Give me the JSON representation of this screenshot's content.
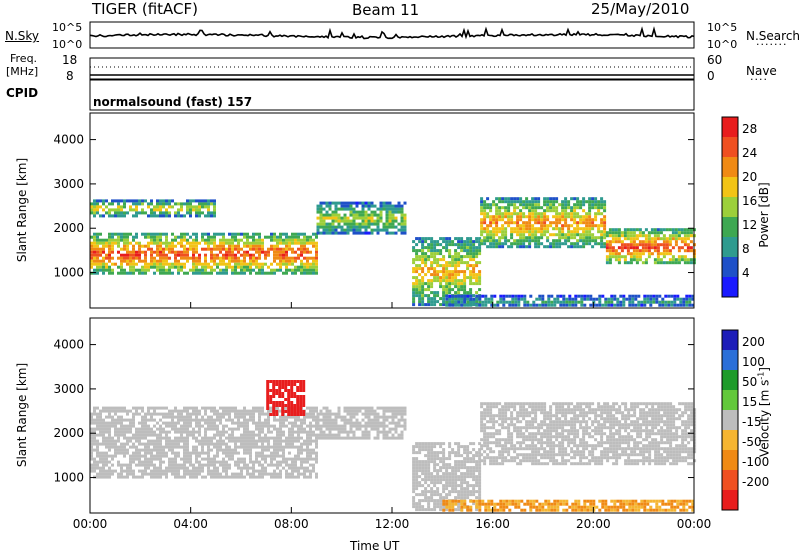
{
  "header": {
    "radar": "TIGER (fitACF)",
    "beam": "Beam 11",
    "date": "25/May/2010"
  },
  "noise_panel": {
    "left_label": "N.Sky",
    "left_ticks": [
      "10^5",
      "10^0"
    ],
    "right_ticks": [
      "10^5",
      "10^0"
    ],
    "right_label": "N.Search"
  },
  "freq_panel": {
    "left_label_line1": "Freq.",
    "left_label_line2": "[MHz]",
    "left_ticks": [
      "18",
      "8"
    ],
    "right_ticks": [
      "60",
      "0"
    ],
    "right_label": "Nave"
  },
  "cpid_panel": {
    "label": "CPID",
    "text": "normalsound (fast) 157"
  },
  "colors": {
    "power_scale": [
      "#1a1aff",
      "#1e50c8",
      "#2f9b8f",
      "#3ea852",
      "#9ccf3a",
      "#f2c416",
      "#f08a14",
      "#ef5020",
      "#e81d1d"
    ],
    "velocity_scale": [
      "#1c1cb8",
      "#2a6fd8",
      "#1e9b2a",
      "#62c83a",
      "#bdbdbd",
      "#f5b531",
      "#f08a14",
      "#ef5020",
      "#e81d1d"
    ],
    "ground_scatter": "#bdbdbd"
  },
  "chart_data": [
    {
      "type": "heatmap",
      "title": "",
      "xlabel": "Time UT",
      "ylabel": "Slant Range [km]",
      "x_ticks": [
        "00:00",
        "04:00",
        "08:00",
        "12:00",
        "16:00",
        "20:00",
        "00:00"
      ],
      "x_range_hours": [
        0,
        24
      ],
      "y_ticks": [
        1000,
        2000,
        3000,
        4000
      ],
      "y_range_km": [
        200,
        4600
      ],
      "colorbar_label": "Power [dB]",
      "colorbar_ticks": [
        4,
        8,
        12,
        16,
        20,
        24,
        28
      ],
      "colorbar_range": [
        0,
        30
      ],
      "echo_bands": [
        {
          "t_start": 0.0,
          "t_end": 9.0,
          "range_km": [
            1000,
            1900
          ],
          "power_db": 26
        },
        {
          "t_start": 0.0,
          "t_end": 5.0,
          "range_km": [
            2300,
            2650
          ],
          "power_db": 18
        },
        {
          "t_start": 9.0,
          "t_end": 12.5,
          "range_km": [
            1900,
            2600
          ],
          "power_db": 16
        },
        {
          "t_start": 12.8,
          "t_end": 15.5,
          "range_km": [
            300,
            1800
          ],
          "power_db": 20
        },
        {
          "t_start": 15.5,
          "t_end": 20.5,
          "range_km": [
            1600,
            2700
          ],
          "power_db": 22
        },
        {
          "t_start": 20.5,
          "t_end": 24.0,
          "range_km": [
            1200,
            2000
          ],
          "power_db": 26
        },
        {
          "t_start": 14.0,
          "t_end": 24.0,
          "range_km": [
            250,
            500
          ],
          "power_db": 10
        }
      ]
    },
    {
      "type": "heatmap",
      "title": "",
      "xlabel": "Time UT",
      "ylabel": "Slant Range [km]",
      "x_ticks": [
        "00:00",
        "04:00",
        "08:00",
        "12:00",
        "16:00",
        "20:00",
        "00:00"
      ],
      "x_range_hours": [
        0,
        24
      ],
      "y_ticks": [
        1000,
        2000,
        3000,
        4000
      ],
      "y_range_km": [
        200,
        4600
      ],
      "colorbar_label": "Velocity [m s",
      "colorbar_label_sup": "-1",
      "colorbar_label_end": "]",
      "colorbar_ticks": [
        200,
        100,
        50,
        15,
        -15,
        -50,
        -100,
        -200
      ],
      "echo_bands": [
        {
          "t_start": 0.0,
          "t_end": 9.0,
          "range_km": [
            1000,
            2600
          ],
          "velocity": 0
        },
        {
          "t_start": 9.0,
          "t_end": 12.5,
          "range_km": [
            1900,
            2600
          ],
          "velocity": 0
        },
        {
          "t_start": 12.8,
          "t_end": 15.5,
          "range_km": [
            300,
            1800
          ],
          "velocity": 0
        },
        {
          "t_start": 15.5,
          "t_end": 24.0,
          "range_km": [
            1300,
            2700
          ],
          "velocity": 0
        },
        {
          "t_start": 14.0,
          "t_end": 24.0,
          "range_km": [
            250,
            500
          ],
          "velocity": -50
        },
        {
          "t_start": 7.0,
          "t_end": 8.5,
          "range_km": [
            2400,
            3200
          ],
          "velocity": -200
        }
      ]
    }
  ]
}
